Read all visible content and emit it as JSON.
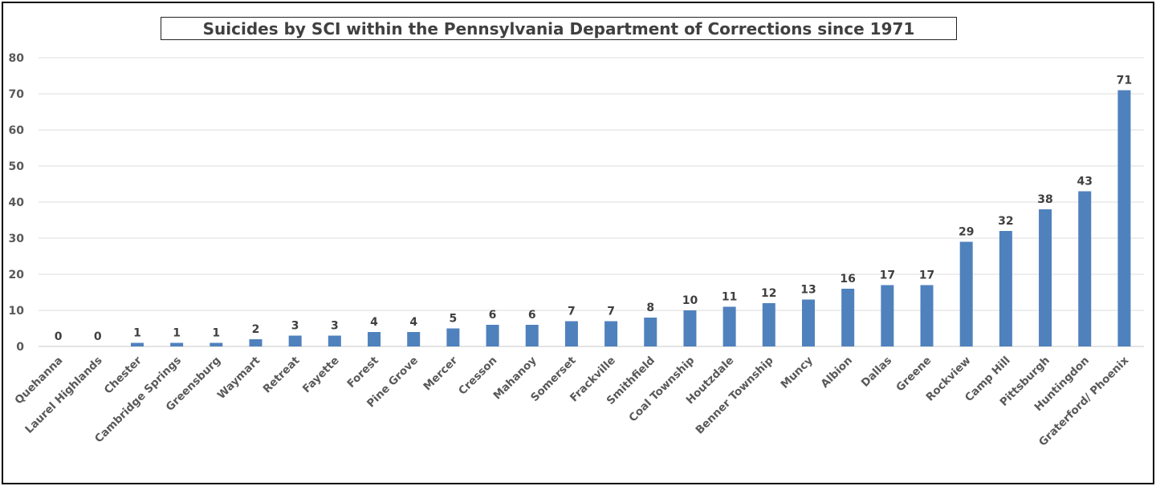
{
  "chart_data": {
    "type": "bar",
    "title": "Suicides by SCI within the Pennsylvania Department of Corrections since 1971",
    "xlabel": "",
    "ylabel": "",
    "ylim": [
      0,
      80
    ],
    "yticks": [
      0,
      10,
      20,
      30,
      40,
      50,
      60,
      70,
      80
    ],
    "grid": true,
    "legend": "none",
    "bar_color": "#4F81BD",
    "categories": [
      "Quehanna",
      "Laurel Highlands",
      "Chester",
      "Cambridge Springs",
      "Greensburg",
      "Waymart",
      "Retreat",
      "Fayette",
      "Forest",
      "Pine Grove",
      "Mercer",
      "Cresson",
      "Mahanoy",
      "Somerset",
      "Frackville",
      "Smithfield",
      "Coal Township",
      "Houtzdale",
      "Benner Township",
      "Muncy",
      "Albion",
      "Dallas",
      "Greene",
      "Rockview",
      "Camp Hill",
      "Pittsburgh",
      "Huntingdon",
      "Graterford/ Phoenix"
    ],
    "values": [
      0,
      0,
      1,
      1,
      1,
      2,
      3,
      3,
      4,
      4,
      5,
      6,
      6,
      7,
      7,
      8,
      10,
      11,
      12,
      13,
      16,
      17,
      17,
      29,
      32,
      38,
      43,
      71
    ]
  }
}
